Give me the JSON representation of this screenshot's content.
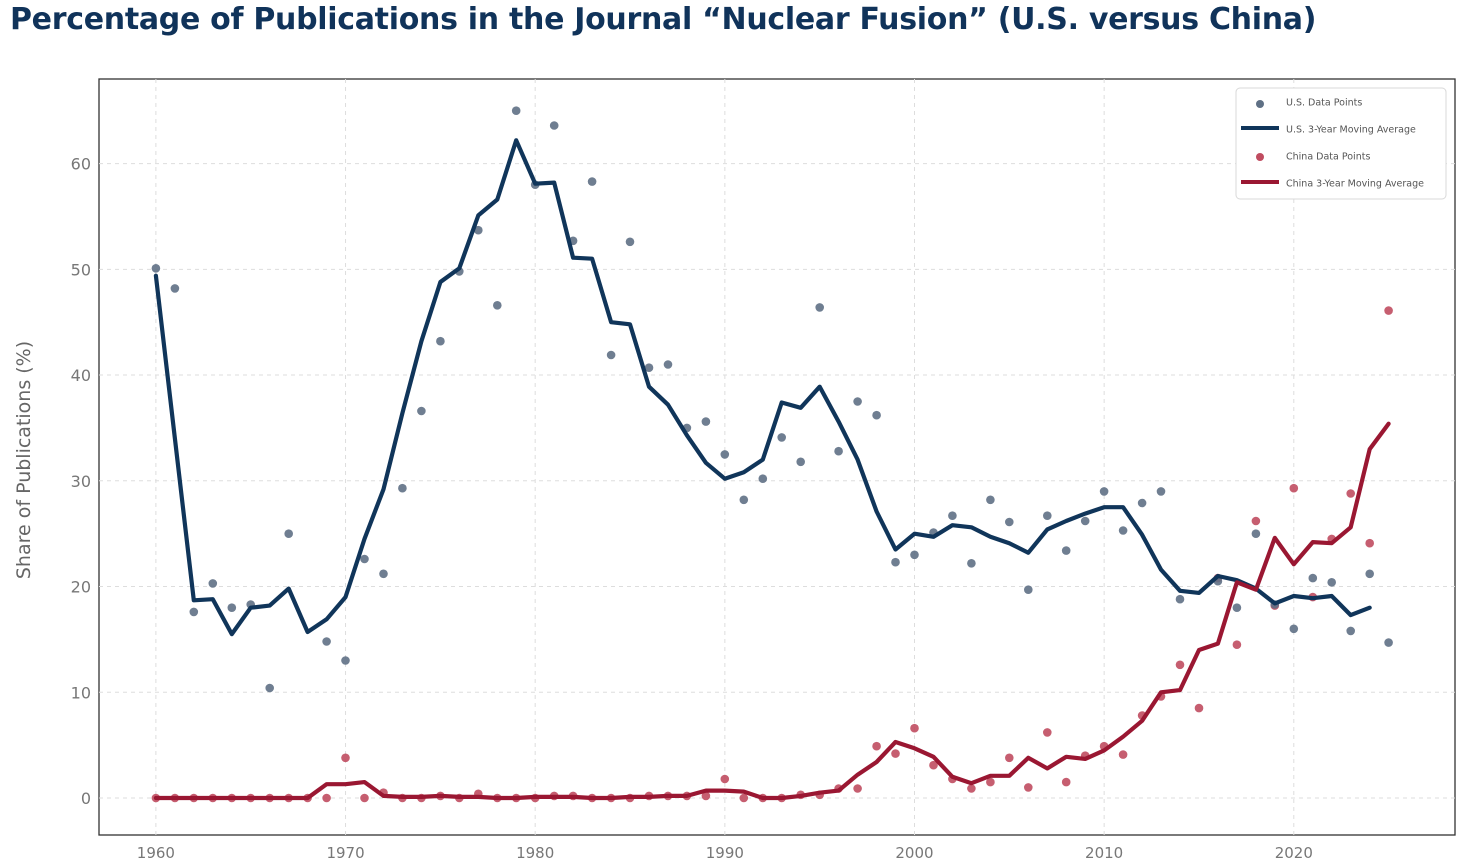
{
  "chart_data": {
    "type": "scatter",
    "title": "Percentage of Publications in the Journal “Nuclear Fusion” (U.S. versus China)",
    "xlabel": "",
    "ylabel": "Share of Publications (%)",
    "xlim": [
      1957,
      2028.5
    ],
    "ylim": [
      -3.5,
      68
    ],
    "grid": true,
    "legend_position": "top-right",
    "x_ticks": [
      1960,
      1970,
      1980,
      1990,
      2000,
      2010,
      2020
    ],
    "y_ticks": [
      0,
      10,
      20,
      30,
      40,
      50,
      60
    ],
    "x": [
      1960,
      1961,
      1962,
      1963,
      1964,
      1965,
      1966,
      1967,
      1968,
      1969,
      1970,
      1971,
      1972,
      1973,
      1974,
      1975,
      1976,
      1977,
      1978,
      1979,
      1980,
      1981,
      1982,
      1983,
      1984,
      1985,
      1986,
      1987,
      1988,
      1989,
      1990,
      1991,
      1992,
      1993,
      1994,
      1995,
      1996,
      1997,
      1998,
      1999,
      2000,
      2001,
      2002,
      2003,
      2004,
      2005,
      2006,
      2007,
      2008,
      2009,
      2010,
      2011,
      2012,
      2013,
      2014,
      2015,
      2016,
      2017,
      2018,
      2019,
      2020,
      2021,
      2022,
      2023,
      2024,
      2025
    ],
    "series": [
      {
        "name": "U.S. Data Points",
        "kind": "scatter",
        "color": "#5f7085",
        "values": [
          50.1,
          48.2,
          17.6,
          20.3,
          18.0,
          18.3,
          10.4,
          25.0,
          null,
          14.8,
          13.0,
          22.6,
          21.2,
          29.3,
          36.6,
          43.2,
          49.8,
          53.7,
          46.6,
          65.0,
          58.0,
          63.6,
          52.7,
          58.3,
          41.9,
          52.6,
          40.7,
          41.0,
          35.0,
          35.6,
          32.5,
          28.2,
          30.2,
          34.1,
          31.8,
          46.4,
          32.8,
          37.5,
          36.2,
          22.3,
          23.0,
          25.1,
          26.7,
          22.2,
          28.2,
          26.1,
          19.7,
          26.7,
          23.4,
          26.2,
          29.0,
          25.3,
          27.9,
          29.0,
          18.8,
          null,
          20.5,
          18.0,
          25.0,
          18.3,
          16.0,
          20.8,
          20.4,
          15.8,
          21.2,
          14.7
        ]
      },
      {
        "name": "U.S. 3-Year Moving Average",
        "kind": "line",
        "color": "#10355a",
        "values": [
          49.4,
          34.0,
          18.7,
          18.8,
          15.5,
          18.0,
          18.2,
          19.8,
          15.7,
          16.9,
          19.0,
          24.5,
          29.2,
          36.4,
          43.2,
          48.8,
          50.1,
          55.1,
          56.6,
          62.2,
          58.1,
          58.2,
          51.1,
          51.0,
          45.0,
          44.8,
          38.9,
          37.2,
          34.3,
          31.7,
          30.2,
          30.8,
          32.0,
          37.4,
          36.9,
          38.9,
          35.6,
          32.0,
          27.1,
          23.5,
          25.0,
          24.7,
          25.8,
          25.6,
          24.7,
          24.1,
          23.2,
          25.4,
          26.2,
          26.9,
          27.5,
          27.5,
          24.9,
          21.6,
          19.6,
          19.4,
          21.0,
          20.6,
          19.8,
          18.4,
          19.1,
          18.9,
          19.1,
          17.3,
          18.0,
          null
        ]
      },
      {
        "name": "China Data Points",
        "kind": "scatter",
        "color": "#c04c60",
        "values": [
          0.0,
          0.0,
          0.0,
          0.0,
          0.0,
          0.0,
          0.0,
          0.0,
          0.0,
          0.0,
          3.8,
          0.0,
          0.5,
          0.0,
          0.0,
          0.2,
          0.0,
          0.4,
          0.0,
          0.0,
          0.0,
          0.2,
          0.2,
          0.0,
          0.0,
          0.0,
          0.2,
          0.2,
          0.2,
          0.2,
          1.8,
          0.0,
          0.0,
          0.0,
          0.3,
          0.3,
          0.9,
          0.9,
          4.9,
          4.2,
          6.6,
          3.1,
          1.8,
          0.9,
          1.5,
          3.8,
          1.0,
          6.2,
          1.5,
          4.0,
          4.9,
          4.1,
          7.8,
          9.6,
          12.6,
          8.5,
          20.8,
          14.5,
          26.2,
          18.2,
          29.3,
          19.0,
          24.5,
          28.8,
          24.1,
          46.1
        ]
      },
      {
        "name": "China 3-Year Moving Average",
        "kind": "line",
        "color": "#9a1732",
        "values": [
          0.0,
          0.0,
          0.0,
          0.0,
          0.0,
          0.0,
          0.0,
          0.0,
          0.0,
          1.3,
          1.3,
          1.5,
          0.2,
          0.1,
          0.1,
          0.2,
          0.1,
          0.1,
          0.0,
          0.0,
          0.1,
          0.1,
          0.1,
          0.0,
          0.0,
          0.1,
          0.1,
          0.2,
          0.2,
          0.7,
          0.7,
          0.6,
          0.0,
          0.0,
          0.2,
          0.5,
          0.7,
          2.2,
          3.4,
          5.3,
          4.7,
          3.9,
          2.0,
          1.4,
          2.1,
          2.1,
          3.8,
          2.8,
          3.9,
          3.7,
          4.5,
          5.8,
          7.3,
          10.0,
          10.2,
          14.0,
          14.6,
          20.4,
          19.7,
          24.6,
          22.1,
          24.2,
          24.1,
          25.6,
          33.0,
          35.4
        ]
      }
    ]
  }
}
